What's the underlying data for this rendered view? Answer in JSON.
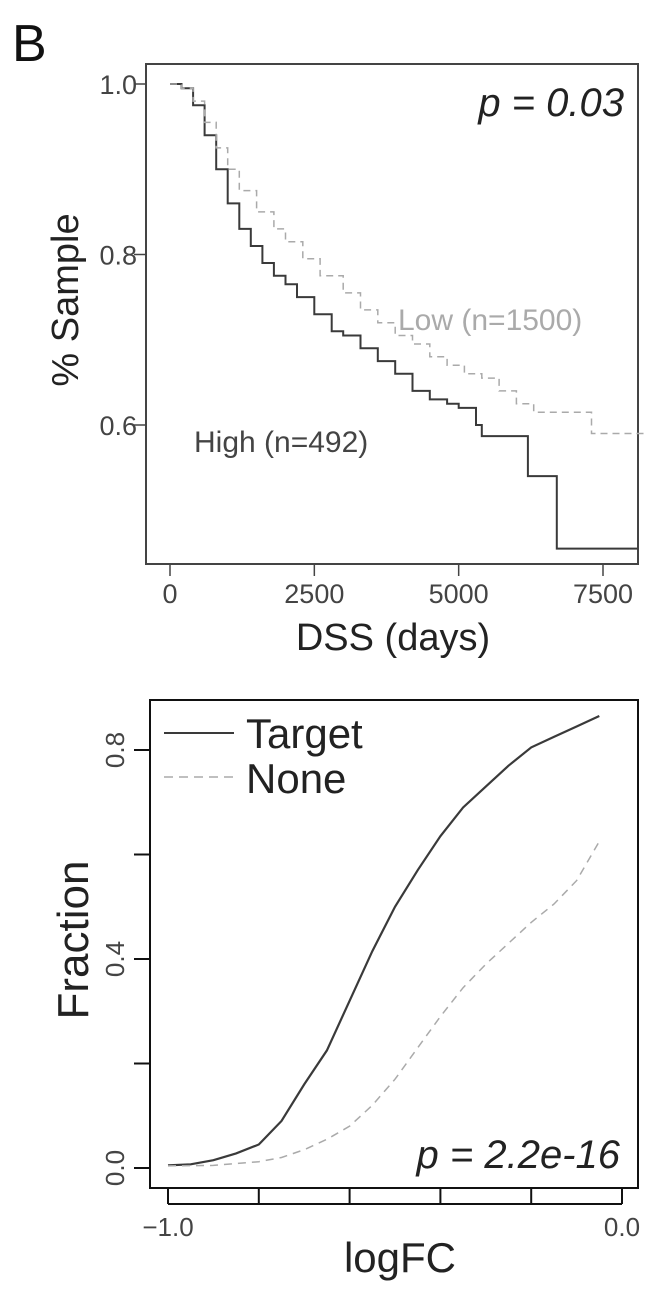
{
  "panel_label": "B",
  "chart_data": [
    {
      "type": "line",
      "chart_kind": "kaplan-meier step plot",
      "xlabel": "DSS (days)",
      "ylabel": "% Sample",
      "xlim": [
        0,
        9000
      ],
      "ylim": [
        0.45,
        1.0
      ],
      "xticks": [
        "0",
        "2500",
        "5000",
        "7500"
      ],
      "xtick_values": [
        0,
        2500,
        5000,
        7500
      ],
      "yticks": [
        "0.6",
        "0.8",
        "1.0"
      ],
      "ytick_values": [
        0.6,
        0.8,
        1.0
      ],
      "annotation": "p = 0.03",
      "grid": false,
      "series": [
        {
          "name": "High (n=492)",
          "color": "#3a3a3a",
          "dash": "solid",
          "x": [
            0,
            200,
            400,
            600,
            800,
            1000,
            1200,
            1400,
            1600,
            1800,
            2000,
            2200,
            2500,
            2800,
            3000,
            3300,
            3600,
            3900,
            4200,
            4500,
            4800,
            5000,
            5300,
            5400,
            6000,
            6200,
            6300,
            6700,
            8100
          ],
          "y": [
            1.0,
            0.995,
            0.975,
            0.94,
            0.9,
            0.86,
            0.83,
            0.81,
            0.79,
            0.775,
            0.765,
            0.75,
            0.73,
            0.71,
            0.705,
            0.69,
            0.675,
            0.66,
            0.64,
            0.63,
            0.625,
            0.62,
            0.6,
            0.587,
            0.587,
            0.54,
            0.54,
            0.455,
            0.455
          ]
        },
        {
          "name": "Low (n=1500)",
          "color": "#aaaaaa",
          "dash": "dashed",
          "x": [
            0,
            200,
            400,
            600,
            800,
            1000,
            1200,
            1500,
            1800,
            2000,
            2300,
            2600,
            3000,
            3300,
            3600,
            3900,
            4200,
            4500,
            4800,
            5100,
            5400,
            5700,
            6000,
            6300,
            7200,
            7300,
            8900
          ],
          "y": [
            1.0,
            0.995,
            0.98,
            0.955,
            0.925,
            0.9,
            0.875,
            0.85,
            0.83,
            0.815,
            0.795,
            0.775,
            0.755,
            0.735,
            0.72,
            0.705,
            0.695,
            0.68,
            0.67,
            0.66,
            0.655,
            0.64,
            0.625,
            0.615,
            0.615,
            0.59,
            0.59
          ]
        }
      ]
    },
    {
      "type": "line",
      "chart_kind": "cumulative fraction plot",
      "xlabel": "logFC",
      "ylabel": "Fraction",
      "xlim": [
        -1.0,
        0.0
      ],
      "ylim": [
        0.0,
        0.87
      ],
      "xticks": [
        "−1.0",
        "0.0"
      ],
      "xtick_values": [
        -1.0,
        0.0
      ],
      "minor_xtick_values": [
        -1.0,
        -0.8,
        -0.6,
        -0.4,
        -0.2,
        0.0
      ],
      "yticks": [
        "0.0",
        "0.4",
        "0.8"
      ],
      "ytick_values": [
        0.0,
        0.4,
        0.8
      ],
      "minor_ytick_values": [
        0.0,
        0.2,
        0.4,
        0.6,
        0.8
      ],
      "annotation": "p = 2.2e-16",
      "legend_position": "top-left",
      "grid": false,
      "series": [
        {
          "name": "Target",
          "color": "#3a3a3a",
          "dash": "solid",
          "x": [
            -1.0,
            -0.95,
            -0.9,
            -0.85,
            -0.8,
            -0.75,
            -0.7,
            -0.65,
            -0.6,
            -0.55,
            -0.5,
            -0.45,
            -0.4,
            -0.35,
            -0.3,
            -0.25,
            -0.2,
            -0.15,
            -0.1,
            -0.05
          ],
          "y": [
            0.005,
            0.007,
            0.015,
            0.028,
            0.045,
            0.09,
            0.16,
            0.225,
            0.32,
            0.415,
            0.5,
            0.57,
            0.635,
            0.69,
            0.73,
            0.77,
            0.805,
            0.825,
            0.845,
            0.865
          ]
        },
        {
          "name": "None",
          "color": "#aaaaaa",
          "dash": "dashed",
          "x": [
            -1.0,
            -0.9,
            -0.8,
            -0.75,
            -0.7,
            -0.65,
            -0.6,
            -0.55,
            -0.5,
            -0.45,
            -0.4,
            -0.35,
            -0.3,
            -0.25,
            -0.2,
            -0.15,
            -0.1,
            -0.05
          ],
          "y": [
            0.004,
            0.005,
            0.012,
            0.02,
            0.035,
            0.055,
            0.08,
            0.12,
            0.17,
            0.23,
            0.29,
            0.345,
            0.39,
            0.43,
            0.47,
            0.505,
            0.55,
            0.625
          ]
        }
      ]
    }
  ]
}
